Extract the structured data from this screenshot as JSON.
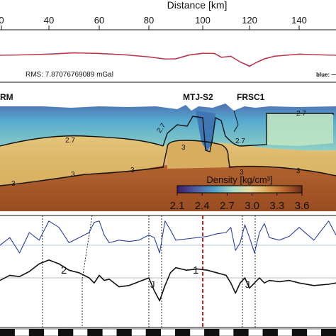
{
  "chart_data": [
    {
      "type": "line",
      "panel": "distance-axis",
      "xlabel": "Distance [km]",
      "x_ticks": [
        "0",
        "40",
        "60",
        "80",
        "100",
        "120",
        "140"
      ],
      "xlim": [
        20,
        150
      ]
    },
    {
      "type": "line",
      "panel": "gravity",
      "rms_text": "RMS: 7.87076769089 mGal",
      "legend_text": "blue: —",
      "series": [
        {
          "color": "#7a3fd6",
          "x": [
            20,
            30,
            40,
            50,
            60,
            70,
            80,
            86,
            90,
            95,
            100,
            105,
            108,
            112,
            116,
            120,
            123,
            126,
            130,
            135,
            140,
            145,
            150
          ],
          "values": [
            0,
            0.1,
            0.3,
            0.6,
            0.4,
            0.1,
            -0.4,
            -0.9,
            -0.8,
            0.1,
            0.5,
            0.4,
            -0.5,
            -0.2,
            -1.6,
            -2.6,
            -1.6,
            -0.8,
            -0.2,
            0,
            0.3,
            0.1,
            0
          ]
        },
        {
          "color": "#c43535",
          "x": [
            20,
            30,
            40,
            50,
            60,
            70,
            80,
            86,
            90,
            95,
            100,
            105,
            108,
            112,
            116,
            120,
            123,
            126,
            130,
            135,
            140,
            145,
            150
          ],
          "values": [
            0,
            0.1,
            0.25,
            0.55,
            0.45,
            0.15,
            -0.35,
            -0.85,
            -0.85,
            0.05,
            0.45,
            0.45,
            -0.45,
            -0.25,
            -1.55,
            -2.5,
            -1.65,
            -0.85,
            -0.25,
            0.05,
            0.25,
            0.15,
            0
          ]
        }
      ]
    },
    {
      "type": "heatmap",
      "panel": "density-model",
      "station_labels": [
        "RM",
        "MTJ-S2",
        "FRSC1"
      ],
      "contour_labels": [
        "2.7",
        "2.7",
        "2.7",
        "2.7",
        "3",
        "3",
        "3",
        "3",
        "3",
        "3"
      ],
      "colorbar_title": "Density [kg/cm³]",
      "colorbar_ticks": [
        "2.1",
        "2.4",
        "2.7",
        "3.0",
        "3.3",
        "3.6"
      ],
      "colorbar_range": [
        2.1,
        3.6
      ],
      "layers": [
        {
          "density": 2.4,
          "name_shown": false
        },
        {
          "density": 2.7,
          "name_shown": false
        },
        {
          "density": 3.0,
          "name_shown": false
        },
        {
          "density": 3.3,
          "name_shown": false
        }
      ]
    },
    {
      "type": "line",
      "panel": "profiles",
      "zone_labels": [
        "2",
        "J",
        "1",
        "J"
      ],
      "series": [
        {
          "color": "#2b3f9e",
          "x": [
            20,
            24,
            28,
            32,
            36,
            40,
            44,
            48,
            52,
            56,
            58,
            60,
            62,
            64,
            68,
            72,
            76,
            80,
            82,
            84,
            86,
            88,
            90,
            94,
            98,
            102,
            106,
            110,
            112,
            114,
            116,
            118,
            120,
            122,
            124,
            126,
            128,
            132,
            136,
            140,
            144,
            148,
            150
          ],
          "values": [
            0.0,
            0.3,
            -0.3,
            0.5,
            0.2,
            0.95,
            0.7,
            0.1,
            0.3,
            0.5,
            0.9,
            0.95,
            0.4,
            0.1,
            0.2,
            0.15,
            0.2,
            0.4,
            0.3,
            -0.3,
            0.95,
            0.6,
            0.2,
            0.25,
            0.3,
            0.35,
            0.45,
            0.5,
            0.7,
            -0.2,
            0.1,
            0.8,
            0.3,
            -0.3,
            0.5,
            0.85,
            0.3,
            0.2,
            0.35,
            0.7,
            0.2,
            0.95,
            0.4
          ]
        },
        {
          "color": "#111111",
          "x": [
            20,
            24,
            28,
            32,
            36,
            40,
            44,
            48,
            52,
            56,
            58,
            60,
            62,
            64,
            68,
            72,
            76,
            80,
            82,
            84,
            86,
            88,
            90,
            94,
            98,
            102,
            106,
            110,
            112,
            114,
            116,
            118,
            120,
            122,
            124,
            126,
            128,
            132,
            136,
            140,
            144,
            148,
            150
          ],
          "values": [
            -0.1,
            0.1,
            0.05,
            0.25,
            0.55,
            0.7,
            0.55,
            0.3,
            0.2,
            0.0,
            -0.2,
            0.1,
            -0.1,
            -0.05,
            -0.35,
            -0.3,
            -0.15,
            0.0,
            -0.5,
            -0.9,
            -0.3,
            0.2,
            0.4,
            0.3,
            0.35,
            0.3,
            0.2,
            0.1,
            -0.2,
            -0.6,
            -0.2,
            0.0,
            -0.4,
            -0.2,
            0.0,
            -0.2,
            -0.1,
            -0.15,
            -0.1,
            -0.2,
            -0.3,
            -0.25,
            -0.2
          ]
        }
      ],
      "segments": [
        "black",
        "white",
        "black",
        "white",
        "black",
        "white",
        "black",
        "white",
        "black",
        "white",
        "black",
        "white",
        "black",
        "white",
        "black",
        "white",
        "black",
        "white",
        "black",
        "white",
        "black",
        "white",
        "black"
      ]
    }
  ]
}
